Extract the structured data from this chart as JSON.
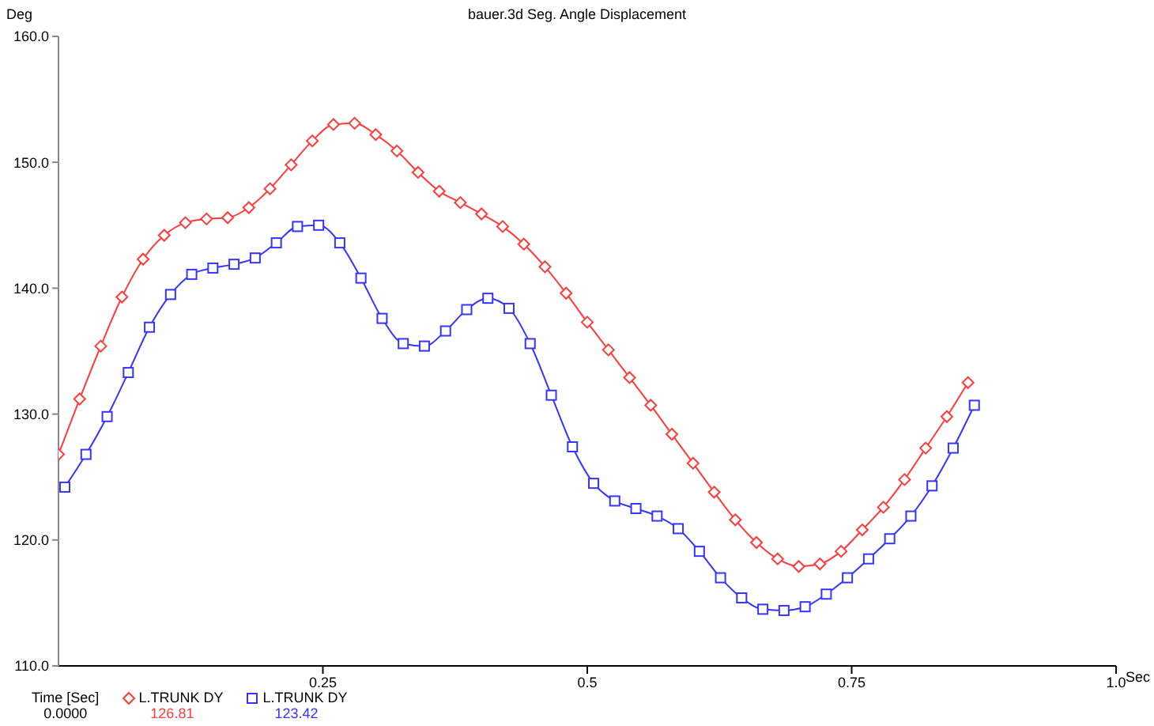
{
  "chart_data": {
    "type": "line",
    "title": "bauer.3d Seg. Angle Displacement",
    "xlabel": "Sec",
    "ylabel": "Deg",
    "xlim": [
      0,
      1
    ],
    "xticks": [
      {
        "value": 0.25,
        "label": "0.25"
      },
      {
        "value": 0.5,
        "label": "0.5"
      },
      {
        "value": 0.75,
        "label": "0.75"
      },
      {
        "value": 1,
        "label": "1.0"
      }
    ],
    "ylim": [
      110,
      160
    ],
    "yticks": [
      {
        "value": 110,
        "label": "110.0"
      },
      {
        "value": 120,
        "label": "120.0"
      },
      {
        "value": 130,
        "label": "130.0"
      },
      {
        "value": 140,
        "label": "140.0"
      },
      {
        "value": 150,
        "label": "150.0"
      },
      {
        "value": 160,
        "label": "160.0"
      }
    ],
    "grid": false,
    "legend": "bottom",
    "line_style": "solid",
    "annotations": [
      "Time [Sec]",
      "0.0000",
      "126.81",
      "123.42"
    ],
    "series": [
      {
        "name": "L.TRUNK DY",
        "color": "#ff3b3b",
        "marker": "diamond",
        "x": [
          0,
          0.02,
          0.04,
          0.06,
          0.08,
          0.1,
          0.12,
          0.14,
          0.16,
          0.18,
          0.2,
          0.22,
          0.24,
          0.26,
          0.28,
          0.3,
          0.32,
          0.34,
          0.36,
          0.38,
          0.4,
          0.42,
          0.44,
          0.46,
          0.48,
          0.5,
          0.52,
          0.54,
          0.56,
          0.58,
          0.6,
          0.62,
          0.64,
          0.66,
          0.68,
          0.7,
          0.72,
          0.74,
          0.76,
          0.78,
          0.8,
          0.82,
          0.84,
          0.86
        ],
        "values": [
          126.8,
          131.2,
          135.4,
          139.3,
          142.3,
          144.2,
          145.2,
          145.5,
          145.6,
          146.4,
          147.9,
          149.8,
          151.7,
          153.0,
          153.1,
          152.2,
          150.9,
          149.2,
          147.7,
          146.8,
          145.9,
          144.9,
          143.5,
          141.7,
          139.6,
          137.3,
          135.1,
          132.9,
          130.7,
          128.4,
          126.1,
          123.8,
          121.6,
          119.8,
          118.5,
          117.9,
          118.1,
          119.1,
          120.8,
          122.6,
          124.8,
          127.3,
          129.8,
          132.5
        ]
      },
      {
        "name": "L.TRUNK DY",
        "color": "#3535ff",
        "marker": "square",
        "x": [
          0.006,
          0.026,
          0.046,
          0.066,
          0.086,
          0.106,
          0.126,
          0.146,
          0.166,
          0.186,
          0.206,
          0.226,
          0.246,
          0.266,
          0.286,
          0.306,
          0.326,
          0.346,
          0.366,
          0.386,
          0.406,
          0.426,
          0.446,
          0.466,
          0.486,
          0.506,
          0.526,
          0.546,
          0.566,
          0.586,
          0.606,
          0.626,
          0.646,
          0.666,
          0.686,
          0.706,
          0.726,
          0.746,
          0.766,
          0.786,
          0.806,
          0.826,
          0.846,
          0.866
        ],
        "values": [
          124.2,
          126.8,
          129.8,
          133.3,
          136.9,
          139.5,
          141.1,
          141.6,
          141.9,
          142.4,
          143.6,
          144.9,
          145.0,
          143.6,
          140.8,
          137.6,
          135.6,
          135.4,
          136.6,
          138.3,
          139.2,
          138.4,
          135.6,
          131.5,
          127.4,
          124.5,
          123.1,
          122.5,
          121.9,
          120.9,
          119.1,
          117.0,
          115.4,
          114.5,
          114.4,
          114.7,
          115.7,
          117.0,
          118.5,
          120.1,
          121.9,
          124.3,
          127.3,
          130.7
        ]
      }
    ]
  }
}
